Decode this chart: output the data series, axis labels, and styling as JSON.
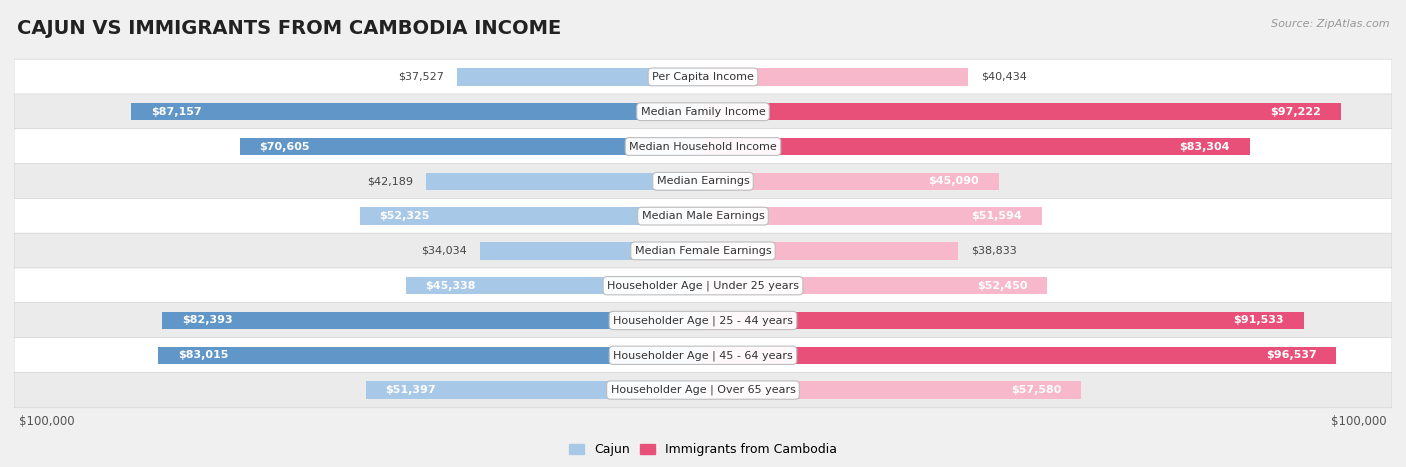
{
  "title": "CAJUN VS IMMIGRANTS FROM CAMBODIA INCOME",
  "source": "Source: ZipAtlas.com",
  "categories": [
    "Per Capita Income",
    "Median Family Income",
    "Median Household Income",
    "Median Earnings",
    "Median Male Earnings",
    "Median Female Earnings",
    "Householder Age | Under 25 years",
    "Householder Age | 25 - 44 years",
    "Householder Age | 45 - 64 years",
    "Householder Age | Over 65 years"
  ],
  "cajun_values": [
    37527,
    87157,
    70605,
    42189,
    52325,
    34034,
    45338,
    82393,
    83015,
    51397
  ],
  "cambodia_values": [
    40434,
    97222,
    83304,
    45090,
    51594,
    38833,
    52450,
    91533,
    96537,
    57580
  ],
  "cajun_labels": [
    "$37,527",
    "$87,157",
    "$70,605",
    "$42,189",
    "$52,325",
    "$34,034",
    "$45,338",
    "$82,393",
    "$83,015",
    "$51,397"
  ],
  "cambodia_labels": [
    "$40,434",
    "$97,222",
    "$83,304",
    "$45,090",
    "$51,594",
    "$38,833",
    "$52,450",
    "$91,533",
    "$96,537",
    "$57,580"
  ],
  "cajun_color_light": "#a8c8e8",
  "cajun_color_dark": "#6096c8",
  "cambodia_color_light": "#f8b8cc",
  "cambodia_color_dark": "#e8507a",
  "cajun_threshold": 60000,
  "cambodia_threshold": 60000,
  "max_value": 100000,
  "row_colors": [
    "#f5f5f5",
    "#e8e8e8"
  ],
  "title_fontsize": 14,
  "label_fontsize": 8,
  "category_fontsize": 8,
  "legend_cajun": "Cajun",
  "legend_cambodia": "Immigrants from Cambodia"
}
